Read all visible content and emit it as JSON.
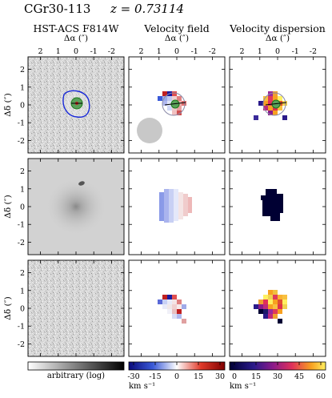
{
  "title": {
    "object": "CGr30-113",
    "redshift": "z = 0.73114"
  },
  "columns": [
    {
      "header": "HST-ACS F814W",
      "axis_label": "Δα (″)"
    },
    {
      "header": "Velocity field",
      "axis_label": "Δα (″)"
    },
    {
      "header": "Velocity dispersion",
      "axis_label": "Δα (″)"
    }
  ],
  "y_axis_label": "Δδ (″)",
  "x_ticks": [
    "2",
    "1",
    "0",
    "-1",
    "-2"
  ],
  "y_ticks": [
    "2",
    "1",
    "0",
    "-1",
    "-2"
  ],
  "colorbars": [
    {
      "label": "arbitrary (log)",
      "ticks": [],
      "units": "",
      "colors": [
        "#ffffff",
        "#000000"
      ]
    },
    {
      "label": "",
      "ticks": [
        "-30",
        "-15",
        "0",
        "15",
        "30"
      ],
      "units": "km s⁻¹",
      "colors": [
        "#0a0a7a",
        "#3a5ad8",
        "#ffffff",
        "#e03a2a",
        "#800000"
      ]
    },
    {
      "label": "",
      "ticks": [
        "0",
        "15",
        "30",
        "45",
        "60"
      ],
      "units": "km s⁻¹",
      "colors": [
        "#000033",
        "#2a1a8a",
        "#8a1a8a",
        "#e0305a",
        "#f8a020",
        "#fff060"
      ]
    }
  ],
  "chart_data": {
    "type": "heatmap",
    "rows": 3,
    "columns": [
      "HST-ACS F814W",
      "Velocity field",
      "Velocity dispersion"
    ],
    "x_axis": {
      "label": "Δα (″)",
      "range": [
        2.7,
        -2.7
      ],
      "ticks": [
        2,
        1,
        0,
        -1,
        -2
      ]
    },
    "y_axis": {
      "label": "Δδ (″)",
      "range": [
        -2.7,
        2.7
      ],
      "ticks": [
        2,
        1,
        0,
        -1,
        -2
      ]
    },
    "velocity_colorbar": {
      "range": [
        -30,
        30
      ],
      "units": "km s⁻¹"
    },
    "dispersion_colorbar": {
      "range": [
        0,
        60
      ],
      "units": "km s⁻¹"
    }
  }
}
